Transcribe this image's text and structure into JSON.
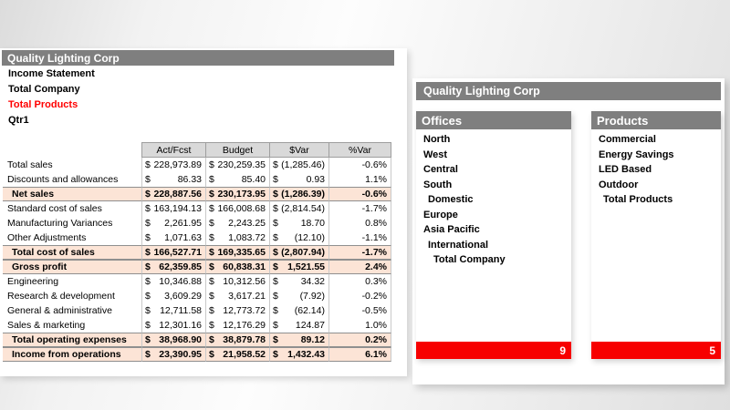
{
  "colors": {
    "bar_gray": "#7f7f7f",
    "accent_red": "#f70000",
    "total_row_highlight": "#fce4d6",
    "selected_context_red": "#ff0000"
  },
  "left": {
    "title": "Quality Lighting Corp",
    "subtitles": [
      {
        "label": "Income Statement",
        "color": "#000000"
      },
      {
        "label": "Total Company",
        "color": "#000000"
      },
      {
        "label": "Total Products",
        "color": "#ff0000"
      },
      {
        "label": "Qtr1",
        "color": "#000000"
      }
    ],
    "table": {
      "columns": [
        "Act/Fcst",
        "Budget",
        "$Var",
        "%Var"
      ],
      "currency_symbol": "$",
      "rows": [
        {
          "label": "Total sales",
          "actfcst": "228,973.89",
          "budget": "230,259.35",
          "dollar_var": "(1,285.46)",
          "pct_var": "-0.6%",
          "total": false
        },
        {
          "label": "Discounts and allowances",
          "actfcst": "86.33",
          "budget": "85.40",
          "dollar_var": "0.93",
          "pct_var": "1.1%",
          "total": false
        },
        {
          "label": "Net sales",
          "actfcst": "228,887.56",
          "budget": "230,173.95",
          "dollar_var": "(1,286.39)",
          "pct_var": "-0.6%",
          "total": true
        },
        {
          "label": "Standard cost of sales",
          "actfcst": "163,194.13",
          "budget": "166,008.68",
          "dollar_var": "(2,814.54)",
          "pct_var": "-1.7%",
          "total": false
        },
        {
          "label": "Manufacturing Variances",
          "actfcst": "2,261.95",
          "budget": "2,243.25",
          "dollar_var": "18.70",
          "pct_var": "0.8%",
          "total": false
        },
        {
          "label": "Other Adjustments",
          "actfcst": "1,071.63",
          "budget": "1,083.72",
          "dollar_var": "(12.10)",
          "pct_var": "-1.1%",
          "total": false
        },
        {
          "label": "Total cost of sales",
          "actfcst": "166,527.71",
          "budget": "169,335.65",
          "dollar_var": "(2,807.94)",
          "pct_var": "-1.7%",
          "total": true
        },
        {
          "label": "Gross profit",
          "actfcst": "62,359.85",
          "budget": "60,838.31",
          "dollar_var": "1,521.55",
          "pct_var": "2.4%",
          "total": true
        },
        {
          "label": "Engineering",
          "actfcst": "10,346.88",
          "budget": "10,312.56",
          "dollar_var": "34.32",
          "pct_var": "0.3%",
          "total": false
        },
        {
          "label": "Research & development",
          "actfcst": "3,609.29",
          "budget": "3,617.21",
          "dollar_var": "(7.92)",
          "pct_var": "-0.2%",
          "total": false
        },
        {
          "label": "General & administrative",
          "actfcst": "12,711.58",
          "budget": "12,773.72",
          "dollar_var": "(62.14)",
          "pct_var": "-0.5%",
          "total": false
        },
        {
          "label": "Sales & marketing",
          "actfcst": "12,301.16",
          "budget": "12,176.29",
          "dollar_var": "124.87",
          "pct_var": "1.0%",
          "total": false
        },
        {
          "label": "Total operating expenses",
          "actfcst": "38,968.90",
          "budget": "38,879.78",
          "dollar_var": "89.12",
          "pct_var": "0.2%",
          "total": true
        },
        {
          "label": "Income from operations",
          "actfcst": "23,390.95",
          "budget": "21,958.52",
          "dollar_var": "1,432.43",
          "pct_var": "6.1%",
          "total": true
        }
      ]
    }
  },
  "right": {
    "title": "Quality Lighting Corp",
    "offices": {
      "title": "Offices",
      "count": "9",
      "items": [
        {
          "label": "North",
          "indent": 0
        },
        {
          "label": "West",
          "indent": 0
        },
        {
          "label": "Central",
          "indent": 0
        },
        {
          "label": "South",
          "indent": 0
        },
        {
          "label": "Domestic",
          "indent": 1
        },
        {
          "label": "Europe",
          "indent": 0
        },
        {
          "label": "Asia Pacific",
          "indent": 0
        },
        {
          "label": "International",
          "indent": 1
        },
        {
          "label": "Total Company",
          "indent": 2
        }
      ]
    },
    "products": {
      "title": "Products",
      "count": "5",
      "items": [
        {
          "label": "Commercial",
          "indent": 0
        },
        {
          "label": "Energy Savings",
          "indent": 0
        },
        {
          "label": "LED Based",
          "indent": 0
        },
        {
          "label": "Outdoor",
          "indent": 0
        },
        {
          "label": "Total Products",
          "indent": 1
        }
      ]
    }
  }
}
